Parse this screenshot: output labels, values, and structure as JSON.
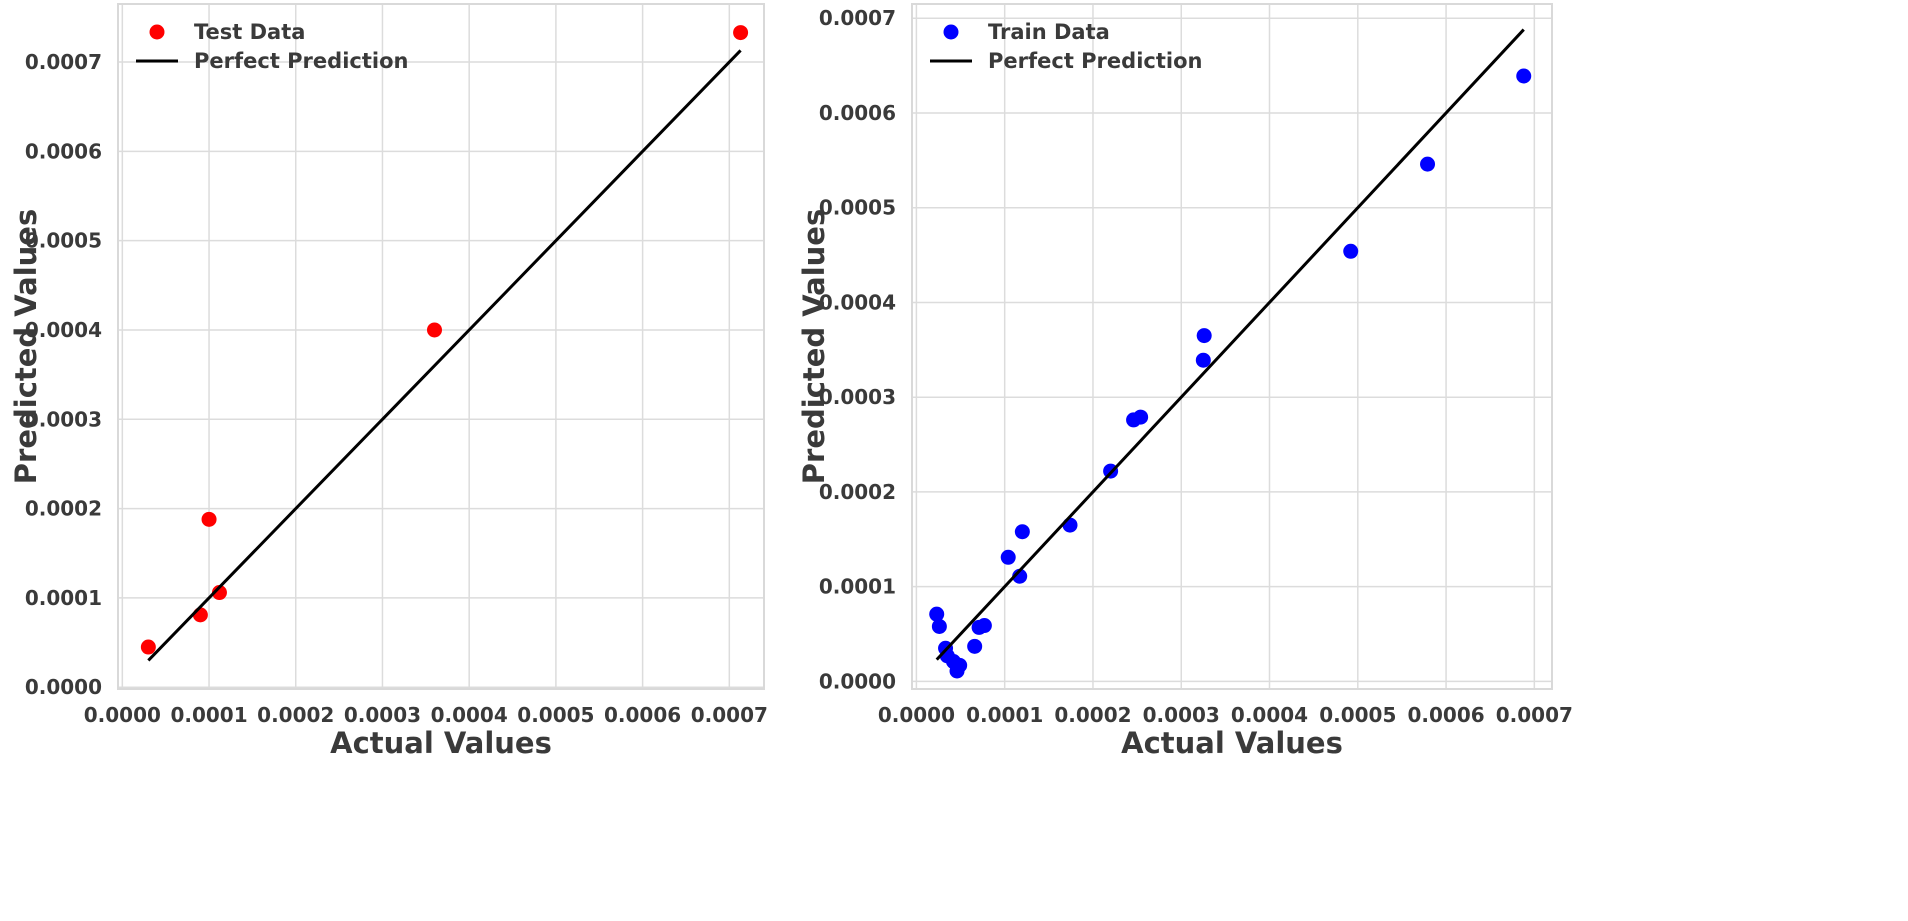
{
  "chart_data": [
    {
      "type": "scatter",
      "xlabel": "Actual Values",
      "ylabel": "Predicted Values",
      "xlim": [
        -5e-06,
        0.00074
      ],
      "ylim": [
        -2e-06,
        0.000765
      ],
      "xticks": [
        0.0,
        0.0001,
        0.0002,
        0.0003,
        0.0004,
        0.0005,
        0.0006,
        0.0007
      ],
      "yticks": [
        0.0,
        0.0001,
        0.0002,
        0.0003,
        0.0004,
        0.0005,
        0.0006,
        0.0007
      ],
      "x_tick_labels": [
        "0.0000",
        "0.0001",
        "0.0002",
        "0.0003",
        "0.0004",
        "0.0005",
        "0.0006",
        "0.0007"
      ],
      "y_tick_labels": [
        "0.0000",
        "0.0001",
        "0.0002",
        "0.0003",
        "0.0004",
        "0.0005",
        "0.0006",
        "0.0007"
      ],
      "grid": true,
      "legend_position": "top-left",
      "series": [
        {
          "name": "Test Data",
          "kind": "points",
          "color": "#ff0000",
          "points": [
            [
              3e-05,
              4.5e-05
            ],
            [
              9e-05,
              8.1e-05
            ],
            [
              0.0001,
              0.000188
            ],
            [
              0.000112,
              0.000106
            ],
            [
              0.00036,
              0.0004
            ],
            [
              0.000713,
              0.000733
            ]
          ]
        },
        {
          "name": "Perfect Prediction",
          "kind": "line",
          "color": "#000000",
          "points": [
            [
              3e-05,
              3e-05
            ],
            [
              0.000713,
              0.000713
            ]
          ]
        }
      ]
    },
    {
      "type": "scatter",
      "xlabel": "Actual Values",
      "ylabel": "Predicted Values",
      "xlim": [
        -5e-06,
        0.00072
      ],
      "ylim": [
        -8e-06,
        0.000715
      ],
      "xticks": [
        0.0,
        0.0001,
        0.0002,
        0.0003,
        0.0004,
        0.0005,
        0.0006,
        0.0007
      ],
      "yticks": [
        0.0,
        0.0001,
        0.0002,
        0.0003,
        0.0004,
        0.0005,
        0.0006,
        0.0007
      ],
      "x_tick_labels": [
        "0.0000",
        "0.0001",
        "0.0002",
        "0.0003",
        "0.0004",
        "0.0005",
        "0.0006",
        "0.0007"
      ],
      "y_tick_labels": [
        "0.0000",
        "0.0001",
        "0.0002",
        "0.0003",
        "0.0004",
        "0.0005",
        "0.0006",
        "0.0007"
      ],
      "grid": true,
      "legend_position": "top-left",
      "series": [
        {
          "name": "Train Data",
          "kind": "points",
          "color": "#0000ff",
          "points": [
            [
              2.3e-05,
              7.1e-05
            ],
            [
              2.6e-05,
              5.8e-05
            ],
            [
              3.3e-05,
              3.5e-05
            ],
            [
              3.5e-05,
              2.7e-05
            ],
            [
              4.2e-05,
              2.1e-05
            ],
            [
              4.6e-05,
              1.1e-05
            ],
            [
              4.9e-05,
              1.7e-05
            ],
            [
              6.6e-05,
              3.7e-05
            ],
            [
              7.1e-05,
              5.7e-05
            ],
            [
              7.7e-05,
              5.9e-05
            ],
            [
              0.000104,
              0.000131
            ],
            [
              0.000117,
              0.000111
            ],
            [
              0.00012,
              0.000158
            ],
            [
              0.000174,
              0.000165
            ],
            [
              0.00022,
              0.000222
            ],
            [
              0.000246,
              0.000276
            ],
            [
              0.000254,
              0.000279
            ],
            [
              0.000325,
              0.000339
            ],
            [
              0.000326,
              0.000365
            ],
            [
              0.000492,
              0.000454
            ],
            [
              0.000579,
              0.000546
            ],
            [
              0.000688,
              0.000639
            ]
          ]
        },
        {
          "name": "Perfect Prediction",
          "kind": "line",
          "color": "#000000",
          "points": [
            [
              2.3e-05,
              2.3e-05
            ],
            [
              0.000688,
              0.000688
            ]
          ]
        }
      ]
    }
  ]
}
